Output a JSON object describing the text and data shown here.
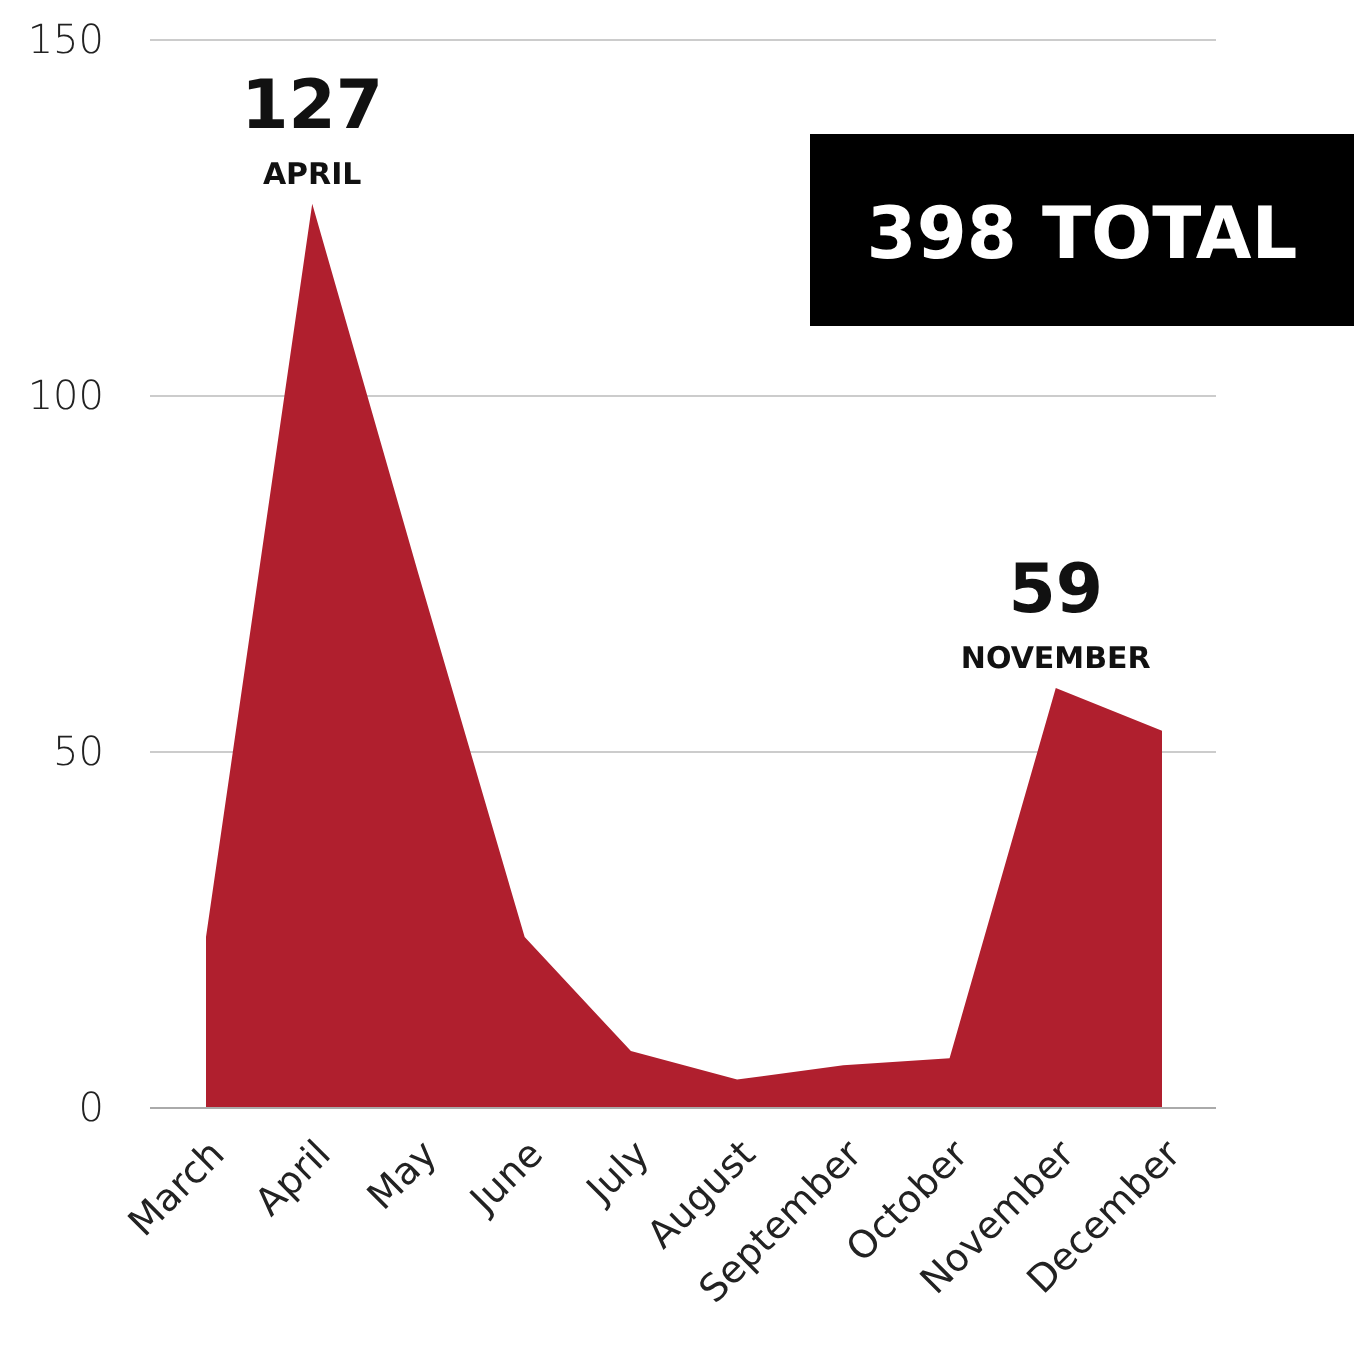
{
  "chart_data": {
    "type": "area",
    "categories": [
      "March",
      "April",
      "May",
      "June",
      "July",
      "August",
      "September",
      "October",
      "November",
      "December"
    ],
    "values": [
      24,
      127,
      75,
      24,
      8,
      4,
      6,
      7,
      59,
      53
    ],
    "color": "#b01f2e",
    "value_labels": [
      null,
      "127",
      null,
      null,
      null,
      null,
      null,
      null,
      "59",
      null
    ],
    "ylim": [
      0,
      150
    ],
    "yticks": [
      0,
      50,
      100,
      150
    ],
    "grid": "y",
    "annotations": [
      "APRIL",
      "NOVEMBER",
      "398 TOTAL"
    ]
  }
}
